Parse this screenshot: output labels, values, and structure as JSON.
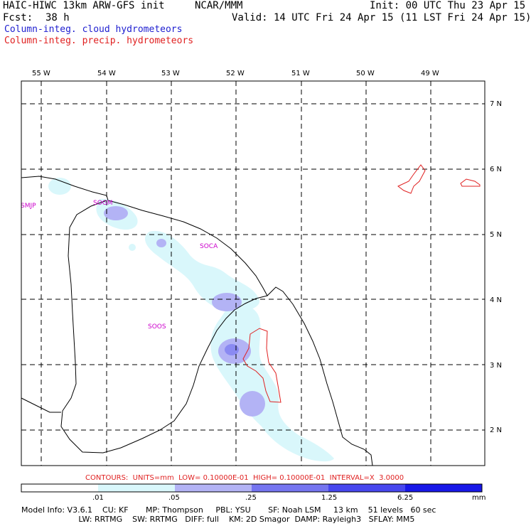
{
  "header": {
    "model_title": "HAIC-HIWC 13km ARW-GFS init",
    "org": "NCAR/MMM",
    "init": "Init: 00 UTC Thu 23 Apr 15",
    "fcst_label": "Fcst:",
    "fcst_value": "38 h",
    "valid": "Valid: 14 UTC Fri 24 Apr 15 (11 LST Fri 24 Apr 15)",
    "field1": "Column-integ. cloud hydrometeors",
    "field2": "Column-integ. precip. hydrometeors"
  },
  "map": {
    "lon_labels": [
      "55 W",
      "54 W",
      "53 W",
      "52 W",
      "51 W",
      "50 W",
      "49 W"
    ],
    "lat_labels": [
      "7 N",
      "6 N",
      "5 N",
      "4 N",
      "3 N",
      "2 N"
    ],
    "stations": [
      "SMJP",
      "SOGM",
      "SOCA",
      "SOOS"
    ]
  },
  "legend": {
    "contours": "CONTOURS:  UNITS=mm  LOW= 0.10000E-01  HIGH= 0.10000E-01  INTERVAL=X  3.0000",
    "ticks": [
      ".01",
      ".05",
      ".25",
      "1.25",
      "6.25"
    ],
    "units": "mm",
    "colors": [
      "#ffffff",
      "#d9f7fb",
      "#b3b3f5",
      "#7575f0",
      "#4747ee",
      "#1818e8"
    ]
  },
  "model_info": {
    "line1": "Model Info: V3.6.1    CU: KF       MP: Thompson     PBL: YSU       SF: Noah LSM     13 km    51 levels   60 sec",
    "line2": "                       LW: RRTMG    SW: RRTMG   DIFF: full    KM: 2D Smagor  DAMP: Rayleigh3   SFLAY: MM5"
  }
}
